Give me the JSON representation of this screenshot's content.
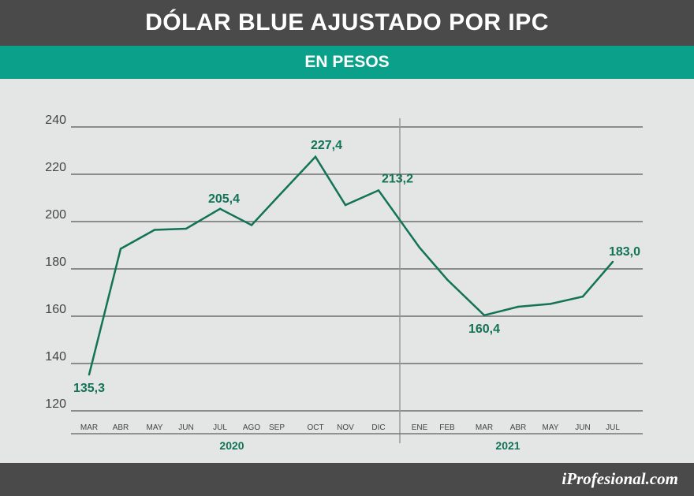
{
  "header": {
    "title": "DÓLAR BLUE AJUSTADO POR IPC",
    "subtitle": "EN PESOS"
  },
  "footer": {
    "brand": "iProfesional.com"
  },
  "colors": {
    "header_bg": "#4a4a4a",
    "subtitle_bg": "#0aa08a",
    "line": "#127356",
    "grid": "#8c8c8c",
    "background": "#e4e5e5"
  },
  "chart_data": {
    "type": "line",
    "title": "DÓLAR BLUE AJUSTADO POR IPC",
    "subtitle": "EN PESOS",
    "categories": [
      "MAR",
      "ABR",
      "MAY",
      "JUN",
      "JUL",
      "AGO",
      "SEP",
      "OCT",
      "NOV",
      "DIC",
      "ENE",
      "FEB",
      "MAR",
      "ABR",
      "MAY",
      "JUN",
      "JUL"
    ],
    "values": [
      135.3,
      188.5,
      196.5,
      197.0,
      205.4,
      198.5,
      210.0,
      227.4,
      207.0,
      213.2,
      189.0,
      175.5,
      160.4,
      164.0,
      165.2,
      168.3,
      183.0
    ],
    "data_labels": [
      {
        "index": 0,
        "text": "135,3",
        "pos": "below"
      },
      {
        "index": 4,
        "text": "205,4",
        "pos": "above"
      },
      {
        "index": 7,
        "text": "227,4",
        "pos": "above"
      },
      {
        "index": 9,
        "text": "213,2",
        "pos": "above"
      },
      {
        "index": 12,
        "text": "160,4",
        "pos": "below"
      },
      {
        "index": 16,
        "text": "183,0",
        "pos": "above"
      }
    ],
    "year_groups": [
      {
        "label": "2020",
        "start": 0,
        "end": 9
      },
      {
        "label": "2021",
        "start": 10,
        "end": 16
      }
    ],
    "yticks": [
      "120",
      "140",
      "160",
      "180",
      "200",
      "220",
      "240"
    ],
    "ylim": [
      120,
      240
    ],
    "xlabel": "",
    "ylabel": "",
    "grid": true
  }
}
